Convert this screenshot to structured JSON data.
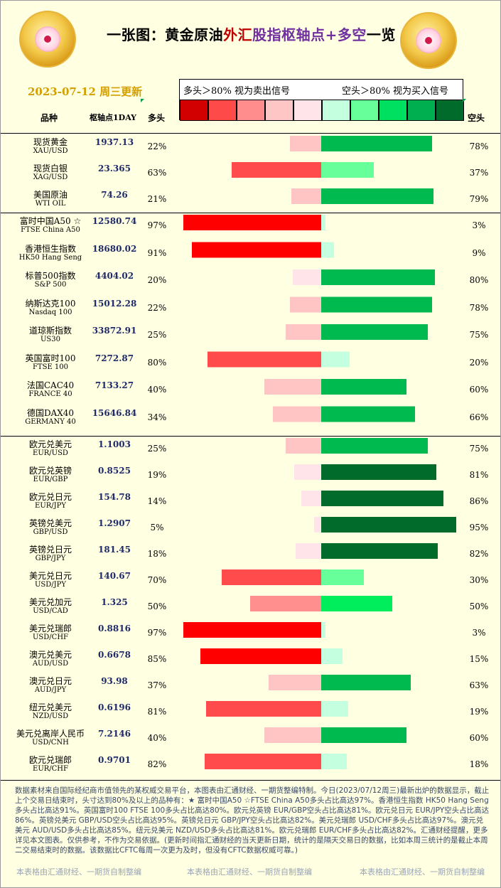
{
  "title": {
    "part1": "一张图：黄金原油",
    "part2": "外汇",
    "part3": "股指",
    "part4": "枢轴点+多空",
    "part5": "一览"
  },
  "date": "2023-07-12 周三更新",
  "legend": {
    "left": "多头＞80% 视为卖出信号",
    "right": "空头＞80% 视为买入信号",
    "colors": [
      "#d20000",
      "#ff4a4a",
      "#ff8d8d",
      "#ffc6c6",
      "#ffe4ea",
      "#c4ffe0",
      "#66ff9a",
      "#00e060",
      "#00b050",
      "#006b2a"
    ]
  },
  "headers": {
    "product": "品种",
    "pivot": "枢轴点1DAY",
    "long": "多头",
    "short": "空头"
  },
  "chart_data": {
    "type": "bar",
    "series": [
      {
        "name": "多头"
      },
      {
        "name": "空头"
      }
    ],
    "rows": [
      {
        "name": "现货黄金",
        "sub": "XAU/USD",
        "pivot": "1937.13",
        "long": 22,
        "short": 78,
        "long_label": "22%",
        "short_label": "78%"
      },
      {
        "name": "现货白银",
        "sub": "XAG/USD",
        "pivot": "23.365",
        "long": 63,
        "short": 37,
        "long_label": "63%",
        "short_label": "37%"
      },
      {
        "name": "美国原油",
        "sub": "WTI OIL",
        "pivot": "74.26",
        "long": 21,
        "short": 79,
        "long_label": "21%",
        "short_label": "79%"
      },
      {
        "name": "富时中国A50 ☆",
        "sub": "FTSE China A50",
        "pivot": "12580.74",
        "long": 97,
        "short": 3,
        "long_label": "97%",
        "short_label": "3%"
      },
      {
        "name": "香港恒生指数",
        "sub": "HK50 Hang Seng",
        "pivot": "18680.02",
        "long": 91,
        "short": 9,
        "long_label": "91%",
        "short_label": "9%"
      },
      {
        "name": "标普500指数",
        "sub": "S&P 500",
        "pivot": "4404.02",
        "long": 20,
        "short": 80,
        "long_label": "20%",
        "short_label": "80%"
      },
      {
        "name": "纳斯达克100",
        "sub": "Nasdaq 100",
        "pivot": "15012.28",
        "long": 22,
        "short": 78,
        "long_label": "22%",
        "short_label": "78%"
      },
      {
        "name": "道琼斯指数",
        "sub": "US30",
        "pivot": "33872.91",
        "long": 25,
        "short": 75,
        "long_label": "25%",
        "short_label": "75%"
      },
      {
        "name": "英国富时100",
        "sub": "FTSE 100",
        "pivot": "7272.87",
        "long": 80,
        "short": 20,
        "long_label": "80%",
        "short_label": "20%"
      },
      {
        "name": "法国CAC40",
        "sub": "FRANCE 40",
        "pivot": "7133.27",
        "long": 40,
        "short": 60,
        "long_label": "40%",
        "short_label": "60%"
      },
      {
        "name": "德国DAX40",
        "sub": "GERMANY 40",
        "pivot": "15646.84",
        "long": 34,
        "short": 66,
        "long_label": "34%",
        "short_label": "66%"
      },
      {
        "name": "欧元兑美元",
        "sub": "EUR/USD",
        "pivot": "1.1003",
        "long": 25,
        "short": 75,
        "long_label": "25%",
        "short_label": "75%"
      },
      {
        "name": "欧元兑英镑",
        "sub": "EUR/GBP",
        "pivot": "0.8525",
        "long": 19,
        "short": 81,
        "long_label": "19%",
        "short_label": "81%"
      },
      {
        "name": "欧元兑日元",
        "sub": "EUR/JPY",
        "pivot": "154.78",
        "long": 14,
        "short": 86,
        "long_label": "14%",
        "short_label": "86%"
      },
      {
        "name": "英镑兑美元",
        "sub": "GBP/USD",
        "pivot": "1.2907",
        "long": 5,
        "short": 95,
        "long_label": "5%",
        "short_label": "95%"
      },
      {
        "name": "英镑兑日元",
        "sub": "GBP/JPY",
        "pivot": "181.45",
        "long": 18,
        "short": 82,
        "long_label": "18%",
        "short_label": "82%"
      },
      {
        "name": "美元兑日元",
        "sub": "USD/JPY",
        "pivot": "140.67",
        "long": 70,
        "short": 30,
        "long_label": "70%",
        "short_label": "30%"
      },
      {
        "name": "美元兑加元",
        "sub": "USD/CAD",
        "pivot": "1.325",
        "long": 50,
        "short": 50,
        "long_label": "50%",
        "short_label": "50%"
      },
      {
        "name": "美元兑瑞郎",
        "sub": "USD/CHF",
        "pivot": "0.8816",
        "long": 97,
        "short": 3,
        "long_label": "97%",
        "short_label": "3%"
      },
      {
        "name": "澳元兑美元",
        "sub": "AUD/USD",
        "pivot": "0.6678",
        "long": 85,
        "short": 15,
        "long_label": "85%",
        "short_label": "15%"
      },
      {
        "name": "澳元兑日元",
        "sub": "AUD/JPY",
        "pivot": "93.98",
        "long": 37,
        "short": 63,
        "long_label": "37%",
        "short_label": "63%"
      },
      {
        "name": "纽元兑美元",
        "sub": "NZD/USD",
        "pivot": "0.6196",
        "long": 81,
        "short": 19,
        "long_label": "81%",
        "short_label": "19%"
      },
      {
        "name": "美元兑离岸人民币",
        "sub": "USD/CNH",
        "pivot": "7.2146",
        "long": 40,
        "short": 60,
        "long_label": "40%",
        "short_label": "60%"
      },
      {
        "name": "欧元兑瑞郎",
        "sub": "EUR/CHF",
        "pivot": "0.9701",
        "long": 82,
        "short": 18,
        "long_label": "82%",
        "short_label": "18%"
      }
    ]
  },
  "footer": "数据素材来自国际经纪商市值领先的某权威交易平台，本图表由汇通财经、一期货整编特制。今日(2023/07/12周三)最新出炉的数据显示，截止上个交易日结束时，头寸达到80%及以上的品种有：★ 富时中国A50 ☆FTSE China A50多头占比高达97%。香港恒生指数 HK50 Hang Seng多头占比高达91%。英国富时100 FTSE 100多头占比高达80%。欧元兑英镑 EUR/GBP空头占比高达81%。欧元兑日元 EUR/JPY空头占比高达86%。英镑兑美元 GBP/USD空头占比高达95%。英镑兑日元 GBP/JPY空头占比高达82%。美元兑瑞郎 USD/CHF多头占比高达97%。澳元兑美元 AUD/USD多头占比高达85%。纽元兑美元 NZD/USD多头占比高达81%。欧元兑瑞郎 EUR/CHF多头占比高达82%。汇通财经提醒，更多详见本文图表。仅供参考，不作为交易依据。(更新时间指汇通财经的当天更新日期，统计的是隔天交易日的数据，比如本周三统计的是截止本周二交易结束时的数据。该数据比CFTC每周一次更为及时，但没有CFTC数据权威可靠。)",
  "watermark": "本表格由汇通财经、一期货自制整编"
}
